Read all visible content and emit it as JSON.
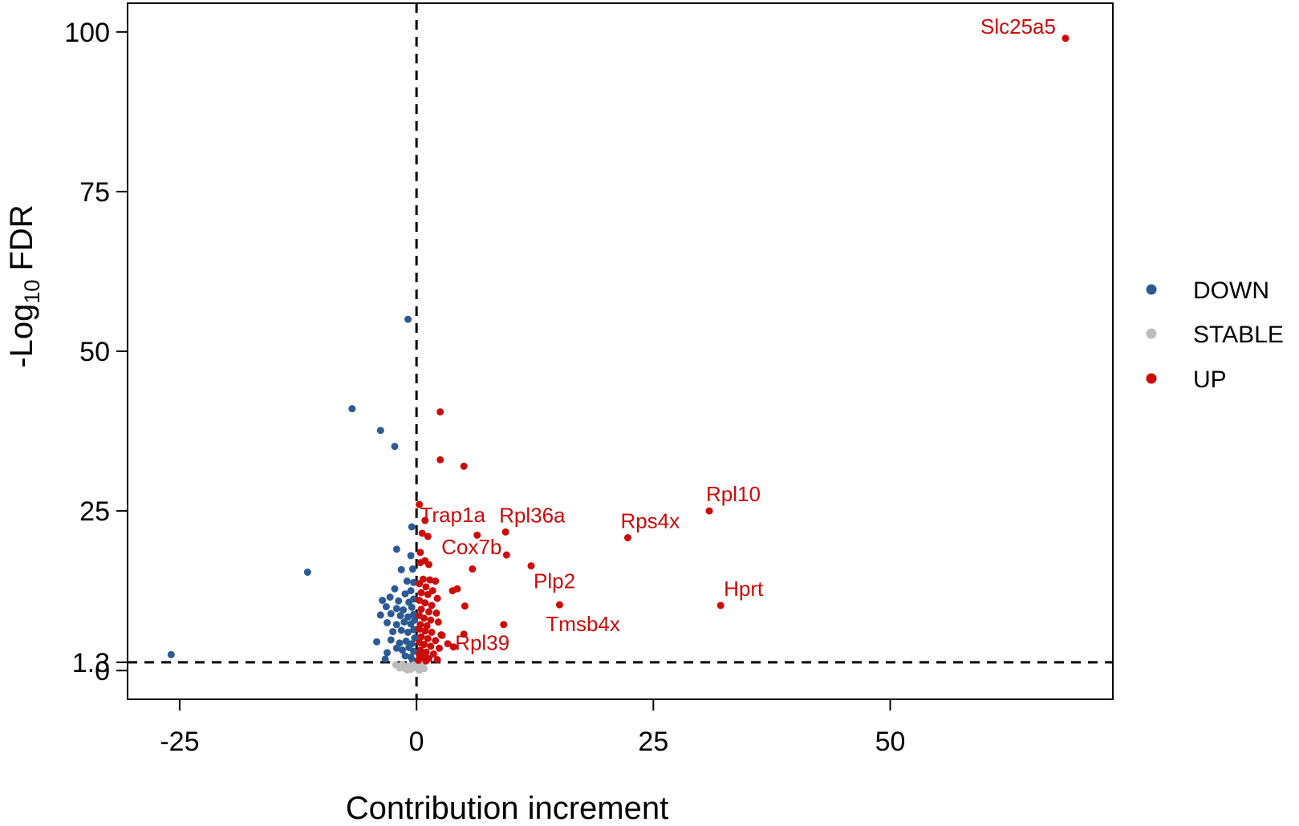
{
  "chart_data": {
    "type": "scatter",
    "title": "",
    "xlabel": "Contribution increment",
    "ylabel_prefix": "-Log",
    "ylabel_sub": "10",
    "ylabel_suffix": " FDR",
    "xlim": [
      -30.5,
      73.5
    ],
    "ylim": [
      -4.5,
      104.5
    ],
    "xticks": [
      {
        "value": -25,
        "label": "-25"
      },
      {
        "value": 0,
        "label": "0"
      },
      {
        "value": 25,
        "label": "25"
      },
      {
        "value": 50,
        "label": "50"
      }
    ],
    "yticks": [
      {
        "value": 0,
        "label": "0"
      },
      {
        "value": 1.3,
        "label": "1.3"
      },
      {
        "value": 25,
        "label": "25"
      },
      {
        "value": 50,
        "label": "50"
      },
      {
        "value": 75,
        "label": "75"
      },
      {
        "value": 100,
        "label": "100"
      }
    ],
    "ref_lines": {
      "vertical_x": 0,
      "horizontal_y": 1.3
    },
    "colors": {
      "DOWN": "#2c5a93",
      "STABLE": "#bdbdbd",
      "UP": "#cc0a0a"
    },
    "legend": {
      "position": "right",
      "entries": [
        {
          "key": "DOWN",
          "label": "DOWN"
        },
        {
          "key": "STABLE",
          "label": "STABLE"
        },
        {
          "key": "UP",
          "label": "UP"
        }
      ]
    },
    "series": [
      {
        "name": "DOWN",
        "points": [
          [
            -25.9,
            2.5
          ],
          [
            -11.5,
            15.4
          ],
          [
            -6.8,
            41.0
          ],
          [
            -3.8,
            37.6
          ],
          [
            -2.3,
            35.1
          ],
          [
            -0.9,
            55.0
          ],
          [
            -0.5,
            22.5
          ],
          [
            -0.6,
            18.0
          ],
          [
            -2.1,
            19.0
          ],
          [
            -1.6,
            15.8
          ],
          [
            -0.4,
            15.9
          ],
          [
            -1.0,
            14.0
          ],
          [
            -0.3,
            13.8
          ],
          [
            -2.3,
            12.8
          ],
          [
            -1.2,
            12.0
          ],
          [
            -0.6,
            12.5
          ],
          [
            -3.6,
            11.0
          ],
          [
            -2.8,
            11.5
          ],
          [
            -1.9,
            10.9
          ],
          [
            -0.8,
            10.7
          ],
          [
            -0.3,
            11.2
          ],
          [
            -3.2,
            10.0
          ],
          [
            -2.1,
            9.7
          ],
          [
            -1.4,
            9.5
          ],
          [
            -0.5,
            9.9
          ],
          [
            -3.8,
            8.7
          ],
          [
            -2.7,
            8.9
          ],
          [
            -1.7,
            8.6
          ],
          [
            -0.9,
            8.4
          ],
          [
            -0.3,
            8.8
          ],
          [
            -3.1,
            7.5
          ],
          [
            -2.1,
            7.2
          ],
          [
            -1.3,
            7.6
          ],
          [
            -0.6,
            7.3
          ],
          [
            -0.2,
            7.9
          ],
          [
            -2.5,
            6.1
          ],
          [
            -1.6,
            6.3
          ],
          [
            -0.9,
            6.0
          ],
          [
            -0.3,
            6.4
          ],
          [
            -4.2,
            4.5
          ],
          [
            -2.7,
            4.8
          ],
          [
            -1.8,
            4.3
          ],
          [
            -1.1,
            4.6
          ],
          [
            -0.5,
            4.2
          ],
          [
            -0.2,
            5.1
          ],
          [
            -2.1,
            3.5
          ],
          [
            -1.5,
            3.2
          ],
          [
            -0.8,
            3.6
          ],
          [
            -0.3,
            3.0
          ],
          [
            -3.1,
            2.8
          ],
          [
            -1.2,
            2.3
          ],
          [
            -0.6,
            2.1
          ],
          [
            -3.3,
            1.8
          ],
          [
            -0.4,
            1.6
          ]
        ]
      },
      {
        "name": "STABLE",
        "points": [
          [
            -2.2,
            0.9
          ],
          [
            -1.8,
            0.4
          ],
          [
            -1.5,
            1.0
          ],
          [
            -1.2,
            0.3
          ],
          [
            -0.9,
            0.7
          ],
          [
            -0.6,
            0.2
          ],
          [
            -0.3,
            0.9
          ],
          [
            -0.1,
            0.5
          ],
          [
            0.1,
            0.8
          ],
          [
            0.2,
            0.2
          ],
          [
            0.4,
            0.6
          ],
          [
            0.6,
            1.0
          ],
          [
            0.8,
            0.3
          ],
          [
            -1.0,
            0.1
          ],
          [
            -1.6,
            0.6
          ],
          [
            0.3,
            0.05
          ]
        ]
      },
      {
        "name": "UP",
        "points": [
          [
            68.5,
            99.0
          ],
          [
            30.9,
            25.0
          ],
          [
            32.1,
            10.2
          ],
          [
            22.3,
            20.8
          ],
          [
            15.1,
            10.3
          ],
          [
            12.1,
            16.4
          ],
          [
            9.4,
            21.7
          ],
          [
            9.5,
            18.1
          ],
          [
            9.2,
            7.2
          ],
          [
            6.4,
            21.2
          ],
          [
            5.9,
            15.9
          ],
          [
            4.3,
            12.8
          ],
          [
            3.8,
            12.5
          ],
          [
            5.1,
            10.1
          ],
          [
            5.0,
            5.7
          ],
          [
            3.9,
            3.7
          ],
          [
            2.5,
            40.5
          ],
          [
            2.5,
            33.0
          ],
          [
            5.0,
            32.0
          ],
          [
            0.3,
            26.0
          ],
          [
            0.9,
            23.5
          ],
          [
            0.6,
            21.5
          ],
          [
            1.2,
            21.0
          ],
          [
            0.4,
            18.5
          ],
          [
            0.9,
            17.2
          ],
          [
            1.3,
            16.6
          ],
          [
            0.4,
            16.9
          ],
          [
            0.7,
            14.3
          ],
          [
            1.4,
            14.2
          ],
          [
            2.0,
            14.0
          ],
          [
            0.3,
            13.6
          ],
          [
            1.0,
            13.1
          ],
          [
            1.7,
            12.5
          ],
          [
            0.5,
            12.2
          ],
          [
            1.2,
            11.9
          ],
          [
            2.2,
            11.3
          ],
          [
            0.3,
            11.0
          ],
          [
            0.9,
            10.6
          ],
          [
            1.6,
            10.2
          ],
          [
            0.5,
            9.6
          ],
          [
            1.3,
            9.2
          ],
          [
            2.1,
            9.0
          ],
          [
            0.3,
            8.6
          ],
          [
            0.8,
            8.2
          ],
          [
            1.5,
            7.9
          ],
          [
            2.3,
            7.6
          ],
          [
            0.4,
            7.2
          ],
          [
            1.1,
            7.0
          ],
          [
            0.3,
            6.5
          ],
          [
            0.9,
            6.2
          ],
          [
            1.6,
            6.0
          ],
          [
            2.6,
            5.6
          ],
          [
            0.5,
            5.3
          ],
          [
            1.2,
            5.0
          ],
          [
            2.0,
            4.7
          ],
          [
            0.3,
            4.4
          ],
          [
            0.8,
            4.1
          ],
          [
            1.5,
            3.8
          ],
          [
            2.4,
            3.5
          ],
          [
            0.4,
            3.2
          ],
          [
            1.0,
            2.9
          ],
          [
            1.8,
            2.6
          ],
          [
            0.3,
            2.4
          ],
          [
            0.7,
            2.1
          ],
          [
            1.3,
            1.9
          ],
          [
            2.2,
            1.7
          ],
          [
            2.7,
            5.5
          ],
          [
            3.3,
            4.2
          ],
          [
            0.2,
            1.6
          ],
          [
            1.0,
            1.5
          ]
        ]
      }
    ],
    "annotations": [
      {
        "text": "Slc25a5",
        "x": 68.5,
        "y": 99.0,
        "dx": -12,
        "dy": -6,
        "anchor": "end"
      },
      {
        "text": "Rpl10",
        "x": 30.9,
        "y": 25.0,
        "dx": -4,
        "dy": -12,
        "anchor": "start"
      },
      {
        "text": "Rps4x",
        "x": 22.3,
        "y": 20.8,
        "dx": -9,
        "dy": -12,
        "anchor": "start"
      },
      {
        "text": "Hprt",
        "x": 32.1,
        "y": 10.2,
        "dx": 4,
        "dy": -12,
        "anchor": "start"
      },
      {
        "text": "Rpl36a",
        "x": 9.4,
        "y": 21.7,
        "dx": -8,
        "dy": -12,
        "anchor": "start"
      },
      {
        "text": "Trap1a",
        "x": 0.2,
        "y": 22.5,
        "dx": 2,
        "dy": -6,
        "anchor": "start"
      },
      {
        "text": "Cox7b",
        "x": 9.5,
        "y": 18.1,
        "dx": -6,
        "dy": -1,
        "anchor": "end"
      },
      {
        "text": "Plp2",
        "x": 12.1,
        "y": 16.4,
        "dx": 3,
        "dy": 28,
        "anchor": "start"
      },
      {
        "text": "Tmsb4x",
        "x": 15.1,
        "y": 10.3,
        "dx": -17,
        "dy": 33,
        "anchor": "start"
      },
      {
        "text": "Rpl39",
        "x": 3.9,
        "y": 3.7,
        "dx": 2,
        "dy": 4,
        "anchor": "start"
      }
    ]
  }
}
